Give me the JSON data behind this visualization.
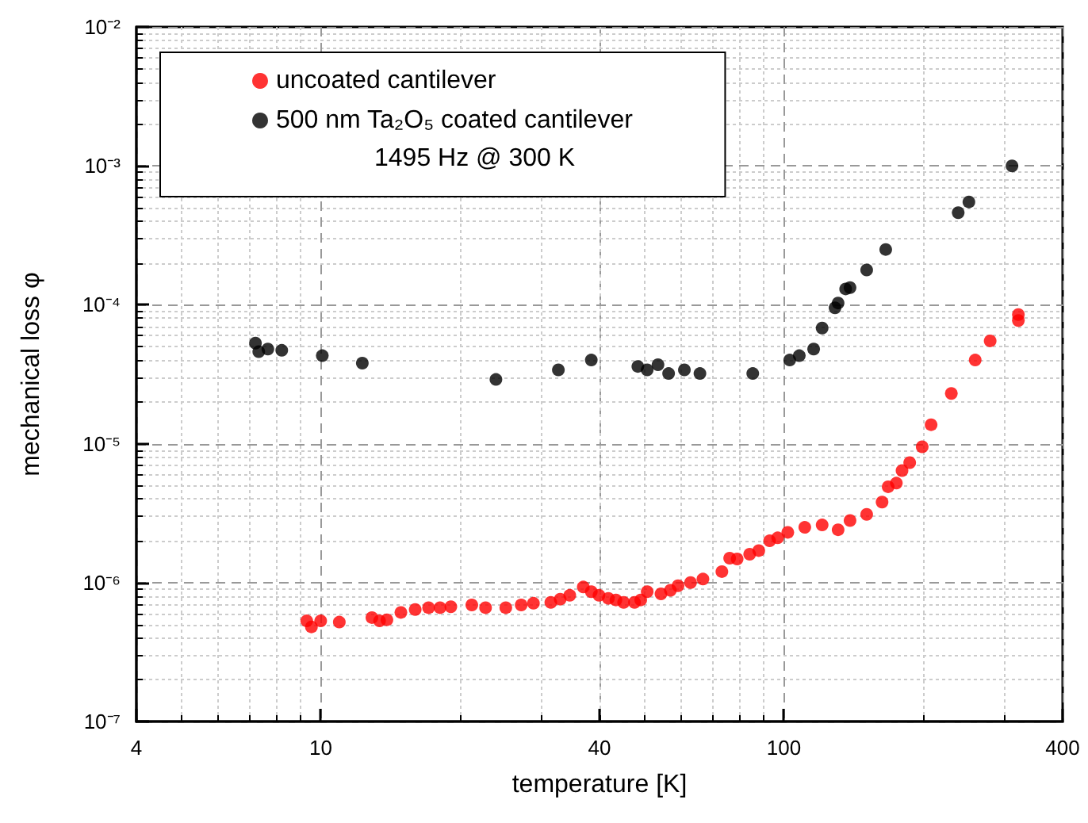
{
  "chart_data": {
    "type": "scatter",
    "xlabel": "temperature [K]",
    "ylabel": "mechanical loss φ",
    "log": "xy",
    "grid": true,
    "legend": "top left",
    "marker": "circle",
    "annotations": [
      "1495 Hz @ 300 K"
    ],
    "xlim": [
      4,
      400
    ],
    "xticks": [
      4,
      10,
      40,
      100,
      400
    ],
    "ylim": [
      1e-07,
      0.01
    ],
    "yticks": [
      {
        "value": 1e-07,
        "label": "10⁻⁷"
      },
      {
        "value": 1e-06,
        "label": "10⁻⁶"
      },
      {
        "value": 1e-05,
        "label": "10⁻⁵"
      },
      {
        "value": 0.0001,
        "label": "10⁻⁴"
      },
      {
        "value": 0.001,
        "label": "10⁻³"
      },
      {
        "value": 0.01,
        "label": "10⁻²"
      }
    ],
    "series": [
      {
        "name": "uncoated cantilever",
        "color": "#ff0000",
        "x": [
          9.33,
          9.55,
          10.0,
          10.97,
          12.9,
          13.4,
          13.9,
          14.9,
          16.0,
          17.1,
          18.1,
          19.1,
          21.2,
          22.7,
          25.1,
          27.1,
          28.8,
          31.4,
          32.9,
          34.5,
          36.9,
          38.4,
          39.9,
          41.8,
          43.4,
          45.1,
          47.6,
          49.1,
          50.7,
          54.3,
          56.9,
          59.1,
          62.9,
          66.9,
          73.5,
          76.4,
          79.3,
          84.4,
          88.3,
          93.2,
          97.0,
          102,
          111,
          121,
          131,
          139,
          151,
          163,
          168,
          175,
          180,
          187,
          199,
          208,
          230,
          259,
          279,
          321,
          321
        ],
        "values": [
          5.3e-07,
          4.8e-07,
          5.3e-07,
          5.2e-07,
          5.6e-07,
          5.3e-07,
          5.4e-07,
          6.1e-07,
          6.4e-07,
          6.6e-07,
          6.6e-07,
          6.7e-07,
          6.9e-07,
          6.6e-07,
          6.6e-07,
          6.9e-07,
          7.1e-07,
          7.2e-07,
          7.6e-07,
          8.1e-07,
          9.3e-07,
          8.6e-07,
          8.1e-07,
          7.7e-07,
          7.5e-07,
          7.2e-07,
          7.2e-07,
          7.5e-07,
          8.6e-07,
          8.3e-07,
          8.8e-07,
          9.5e-07,
          1e-06,
          1.06e-06,
          1.2e-06,
          1.5e-06,
          1.48e-06,
          1.6e-06,
          1.7e-06,
          2e-06,
          2.1e-06,
          2.3e-06,
          2.5e-06,
          2.6e-06,
          2.4e-06,
          2.8e-06,
          3.1e-06,
          3.8e-06,
          4.9e-06,
          5.2e-06,
          6.4e-06,
          7.3e-06,
          9.5e-06,
          1.37e-05,
          2.3e-05,
          4e-05,
          5.5e-05,
          8.5e-05,
          7.7e-05
        ]
      },
      {
        "name": "500 nm Ta₂O₅ coated cantilever",
        "color": "#000000",
        "x": [
          7.23,
          7.35,
          7.69,
          8.24,
          10.08,
          12.3,
          23.9,
          32.6,
          38.4,
          48.4,
          50.7,
          53.5,
          56.4,
          61.0,
          65.9,
          85.7,
          103,
          108,
          116,
          121,
          129,
          131,
          136,
          139,
          151,
          166,
          238,
          251,
          311
        ],
        "values": [
          5.3e-05,
          4.6e-05,
          4.8e-05,
          4.7e-05,
          4.3e-05,
          3.8e-05,
          2.9e-05,
          3.4e-05,
          4e-05,
          3.6e-05,
          3.4e-05,
          3.7e-05,
          3.2e-05,
          3.4e-05,
          3.2e-05,
          3.2e-05,
          4e-05,
          4.3e-05,
          4.8e-05,
          6.8e-05,
          9.5e-05,
          0.000103,
          0.00013,
          0.000133,
          0.000178,
          0.00025,
          0.00046,
          0.00055,
          0.001
        ]
      }
    ]
  }
}
